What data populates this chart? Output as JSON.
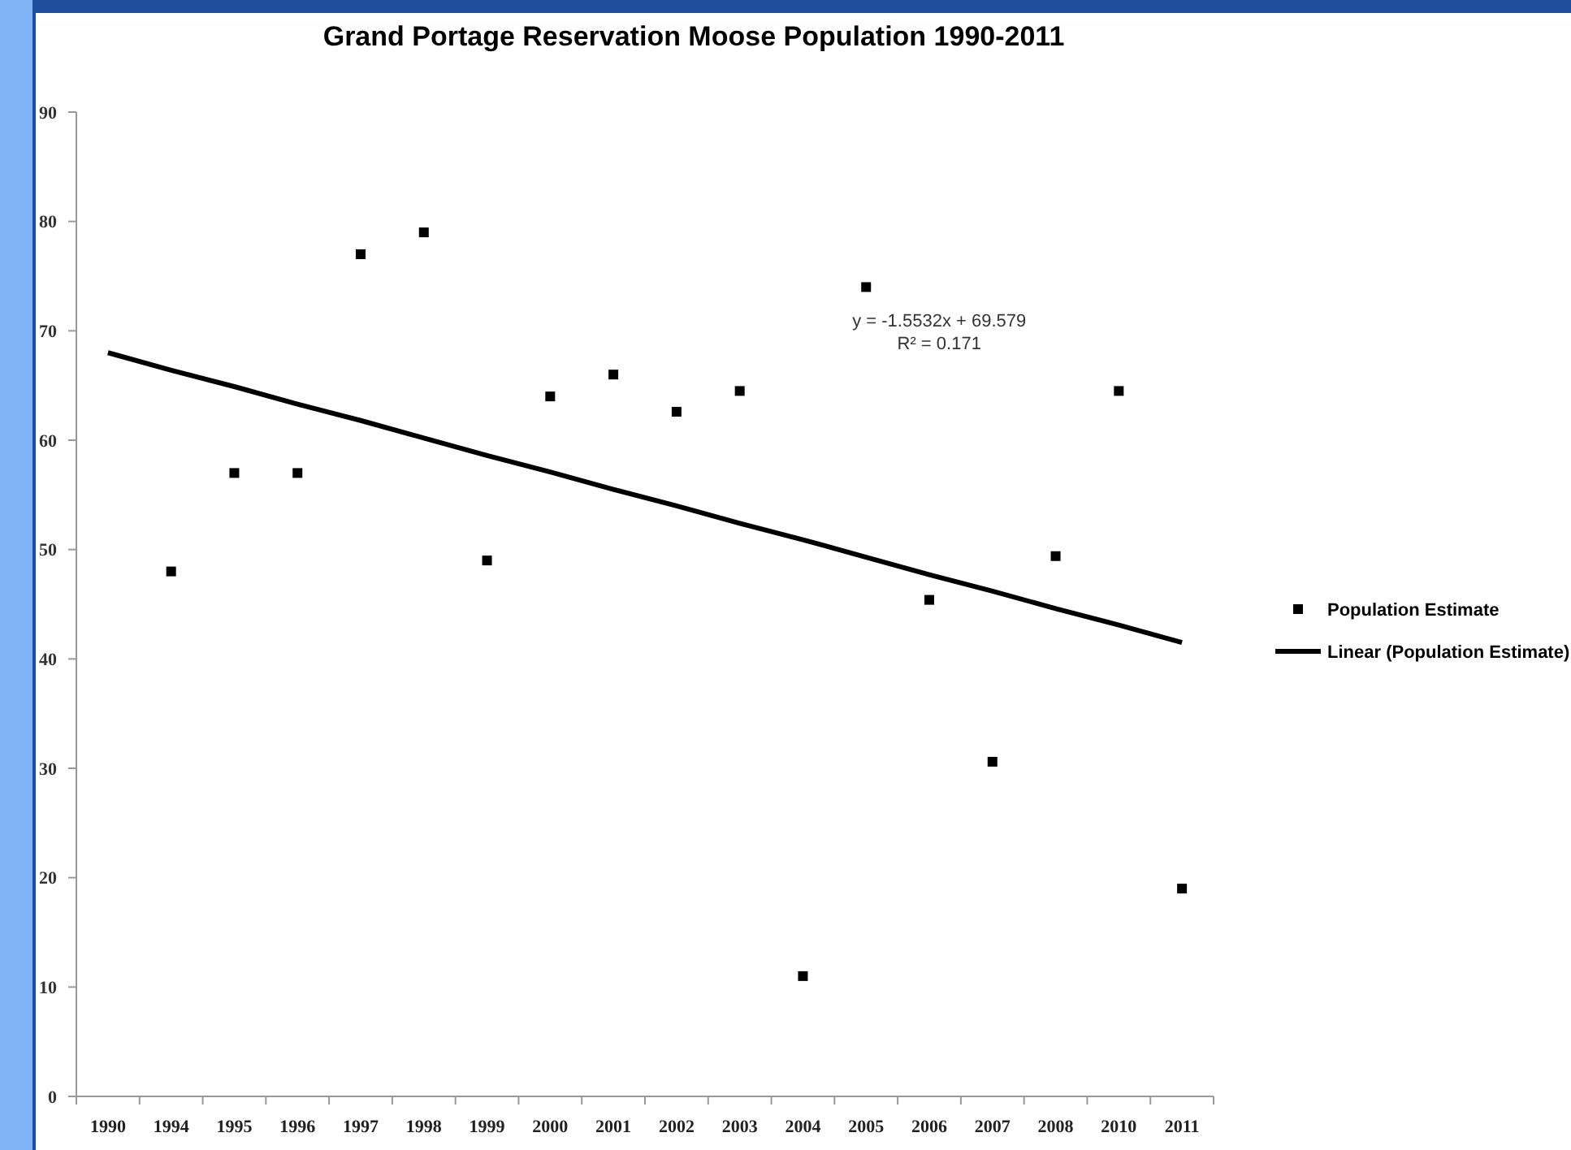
{
  "chart_data": {
    "type": "scatter",
    "title": "Grand Portage Reservation Moose Population 1990-2011",
    "categories": [
      "1990",
      "1994",
      "1995",
      "1996",
      "1997",
      "1998",
      "1999",
      "2000",
      "2001",
      "2002",
      "2003",
      "2004",
      "2005",
      "2006",
      "2007",
      "2008",
      "2010",
      "2011"
    ],
    "series": [
      {
        "name": "Population Estimate",
        "color": "#000000",
        "marker": "square",
        "values": [
          null,
          48,
          57,
          57,
          77,
          79,
          49,
          64,
          66,
          62.6,
          64.5,
          11,
          74,
          45.4,
          30.6,
          49.4,
          64.5,
          19
        ]
      },
      {
        "name": "Linear (Population Estimate)",
        "type": "line",
        "color": "#000000",
        "values": [
          68,
          66.4,
          64.9,
          63.3,
          61.8,
          60.2,
          58.6,
          57.1,
          55.5,
          54.0,
          52.4,
          50.9,
          49.3,
          47.7,
          46.2,
          44.6,
          43.1,
          41.5
        ]
      }
    ],
    "annotations": [
      "y = -1.5532x + 69.579",
      "R² = 0.171"
    ],
    "ylim": [
      0,
      90
    ],
    "yticks": [
      0,
      10,
      20,
      30,
      40,
      50,
      60,
      70,
      80,
      90
    ],
    "grid": false,
    "legend": "right"
  }
}
